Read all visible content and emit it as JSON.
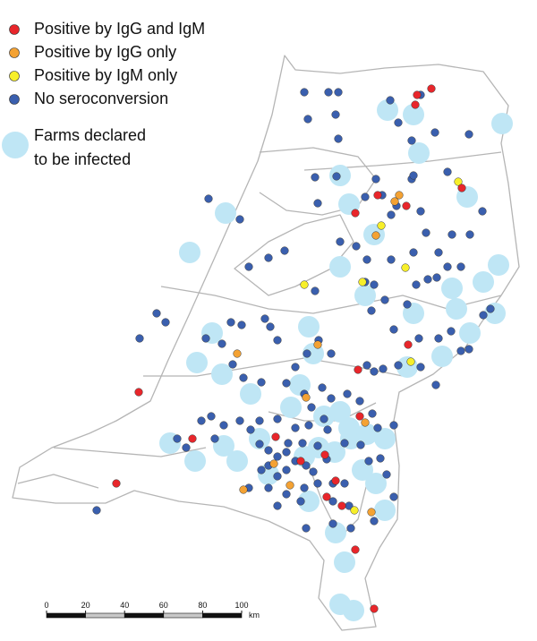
{
  "legend": {
    "items": [
      {
        "label": "Positive by IgG and IgM",
        "color": "#e8262b"
      },
      {
        "label": "Positive by IgG only",
        "color": "#f4a233"
      },
      {
        "label": "Positive by IgM only",
        "color": "#f7ef2a"
      },
      {
        "label": "No seroconversion",
        "color": "#3a5fae"
      },
      {
        "lines": [
          "Farms declared",
          "to be infected"
        ],
        "color": "#bfe6f5"
      }
    ]
  },
  "scale_bar": {
    "ticks": [
      0,
      20,
      40,
      60,
      80,
      100
    ],
    "unit": "km"
  }
}
